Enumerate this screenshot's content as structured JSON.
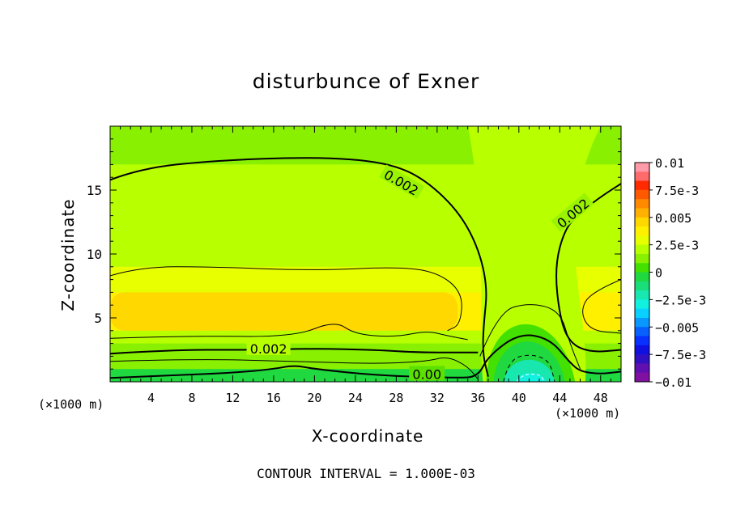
{
  "chart_data": {
    "type": "heatmap",
    "title": "disturbunce of Exner",
    "xlabel": "X-coordinate",
    "ylabel": "Z-coordinate",
    "x_unit": "(×1000 m)",
    "z_unit": "(×1000 m)",
    "footer": "CONTOUR INTERVAL = 1.000E-03",
    "xlim": [
      0,
      50
    ],
    "ylim": [
      0,
      20
    ],
    "x_ticks": [
      4,
      8,
      12,
      16,
      20,
      24,
      28,
      32,
      36,
      40,
      44,
      48
    ],
    "y_ticks": [
      5,
      10,
      15
    ],
    "contour_interval": 0.001,
    "contour_labels": [
      {
        "text": "0.002",
        "x": 28.5,
        "z": 15.6
      },
      {
        "text": "0.002",
        "x": 45.3,
        "z": 13.2
      },
      {
        "text": "0.002",
        "x": 15.5,
        "z": 2.6
      },
      {
        "text": "0.00",
        "x": 31.0,
        "z": 0.6
      }
    ],
    "colorbar": {
      "min": -0.01,
      "max": 0.01,
      "tick_labels": [
        "0.01",
        "7.5e-3",
        "0.005",
        "2.5e-3",
        "0",
        "−2.5e-3",
        "−0.005",
        "−7.5e-3",
        "−0.01"
      ],
      "colors": [
        "#ff9aa8",
        "#ff6a6a",
        "#ff2a00",
        "#ff5a00",
        "#ff8a00",
        "#ffb000",
        "#ffd800",
        "#fff000",
        "#e8ff00",
        "#b8ff00",
        "#88f000",
        "#44e000",
        "#20d840",
        "#1ade7a",
        "#18e8b0",
        "#12f0e0",
        "#0ad0ff",
        "#0898ff",
        "#0860ff",
        "#0830ff",
        "#1010e0",
        "#3010c0",
        "#6010b0",
        "#8010a0"
      ]
    },
    "field_bands_top_to_bottom": [
      {
        "z_range": [
          19.5,
          20
        ],
        "value": 0.001
      },
      {
        "z_range": [
          17,
          19.5
        ],
        "value": 0.0015
      },
      {
        "z_range": [
          12,
          17
        ],
        "value": 0.002
      },
      {
        "z_range": [
          9,
          12
        ],
        "value": 0.0025
      },
      {
        "z_range": [
          7,
          9
        ],
        "value": 0.003
      },
      {
        "z_range": [
          4,
          7
        ],
        "value": 0.004
      },
      {
        "z_range": [
          3,
          4
        ],
        "value": 0.0025
      },
      {
        "z_range": [
          1,
          3
        ],
        "value": 0.0015
      },
      {
        "z_range": [
          0,
          1
        ],
        "value": 0.0
      }
    ],
    "features": [
      {
        "name": "high-pressure core",
        "x_range": [
          0,
          34
        ],
        "z_range": [
          4,
          7
        ],
        "value": 0.0045
      },
      {
        "name": "right high core",
        "x_range": [
          46,
          50
        ],
        "z_range": [
          4,
          6.5
        ],
        "value": 0.004
      },
      {
        "name": "low-pressure minimum",
        "x": 41,
        "z": 0.2,
        "value": -0.0025
      }
    ]
  }
}
